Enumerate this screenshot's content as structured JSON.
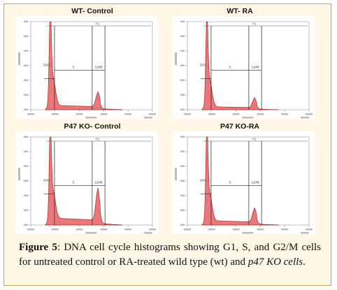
{
  "figure": {
    "panels": [
      {
        "id": "wt-control",
        "title": "WT- Control",
        "labels": {
          "g1": "G0/1",
          "s": "S",
          "g2m": "G2/M",
          "marker": "P1"
        },
        "peaks": {
          "g1": 0.93,
          "g2": 0.15,
          "s": 0.05
        }
      },
      {
        "id": "wt-ra",
        "title": "WT- RA",
        "labels": {
          "g1": "G0/1",
          "s": "S",
          "g2m": "G2/M",
          "marker": "P1"
        },
        "peaks": {
          "g1": 0.9,
          "g2": 0.1,
          "s": 0.035
        }
      },
      {
        "id": "p47-control",
        "title": "P47 KO- Control",
        "labels": {
          "g1": "G0/1",
          "s": "S",
          "g2m": "G2/M",
          "marker": "P1"
        },
        "peaks": {
          "g1": 0.92,
          "g2": 0.33,
          "s": 0.08
        }
      },
      {
        "id": "p47-ra",
        "title": "P47 KO-RA",
        "labels": {
          "g1": "G0/1",
          "s": "S",
          "g2m": "G2/M",
          "marker": "P1"
        },
        "peaks": {
          "g1": 0.92,
          "g2": 0.14,
          "s": 0.05
        }
      }
    ],
    "caption": {
      "figure_label": "Figure 5",
      "text_before_italic": ": DNA cell cycle histograms showing G1, S, and G2/M cells for untreated control or RA-treated wild type (wt) and ",
      "italic_text": "p47 KO cells",
      "text_after_italic": "."
    }
  },
  "colors": {
    "fill": "#e8787a",
    "stroke": "#b3262c",
    "frame_border": "#c9a24a",
    "frame_bg": "#fff7e6"
  }
}
